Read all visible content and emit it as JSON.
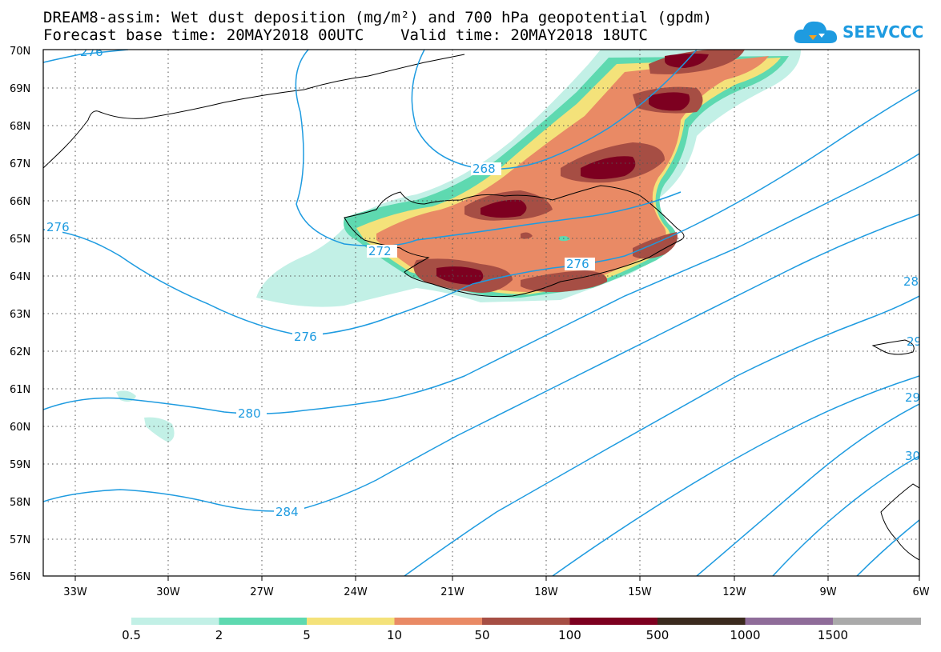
{
  "header": {
    "title_line1": "DREAM8-assim: Wet dust deposition (mg/m²) and 700 hPa geopotential (gpdm)",
    "title_line2": "Forecast base time: 20MAY2018 00UTC    Valid time: 20MAY2018 18UTC"
  },
  "logo": {
    "text": "SEEVCCC",
    "icon": "cloud-icon",
    "color": "#1e9be0"
  },
  "map": {
    "lat_labels": [
      "70N",
      "69N",
      "68N",
      "67N",
      "66N",
      "65N",
      "64N",
      "63N",
      "62N",
      "61N",
      "60N",
      "59N",
      "58N",
      "57N",
      "56N"
    ],
    "lon_labels": [
      "33W",
      "30W",
      "27W",
      "24W",
      "21W",
      "18W",
      "15W",
      "12W",
      "9W",
      "6W"
    ],
    "contour_color": "#1e9be0",
    "contour_labels": [
      "276",
      "268",
      "276",
      "272",
      "276",
      "276",
      "280",
      "284",
      "28",
      "29",
      "29",
      "30"
    ]
  },
  "colorbar": {
    "labels": [
      "0.5",
      "2",
      "5",
      "10",
      "50",
      "100",
      "500",
      "1000",
      "1500"
    ],
    "colors": [
      "#c2f0e6",
      "#5ed9b0",
      "#f4e27a",
      "#e98a65",
      "#a64e44",
      "#7d0020",
      "#3b2a1e",
      "#8f6c99",
      "#aaaaaa"
    ]
  }
}
